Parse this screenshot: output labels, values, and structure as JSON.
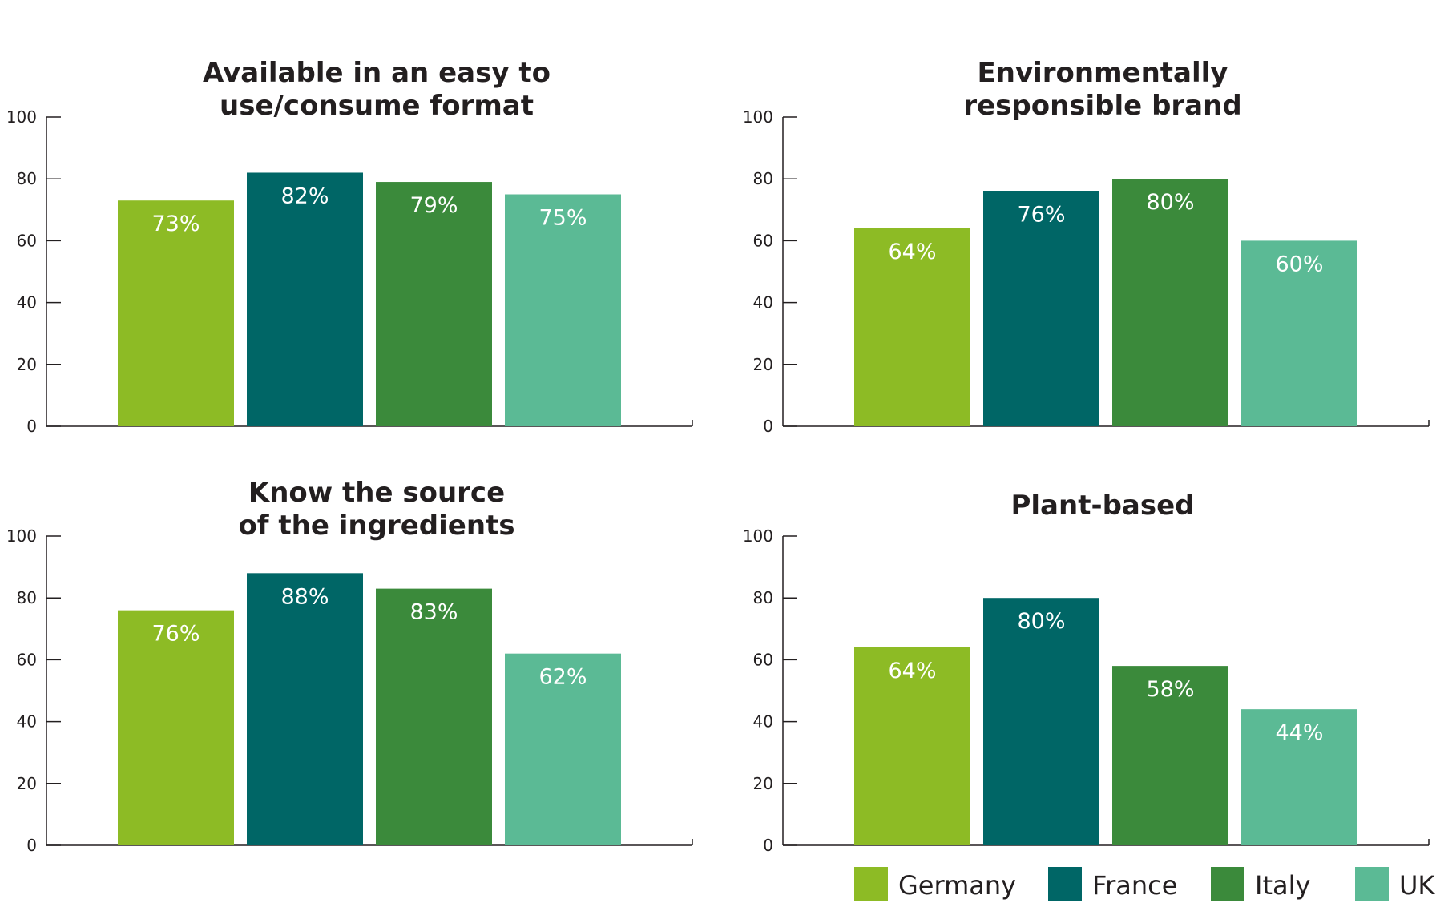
{
  "colors": {
    "Germany": "#8dbb25",
    "France": "#006666",
    "Italy": "#3b8a3b",
    "UK": "#5bba95",
    "axis": "#231f20"
  },
  "legend": [
    {
      "label": "Germany",
      "color_key": "Germany"
    },
    {
      "label": "France",
      "color_key": "France"
    },
    {
      "label": "Italy",
      "color_key": "Italy"
    },
    {
      "label": "UK",
      "color_key": "UK"
    }
  ],
  "chart_data": [
    {
      "type": "bar",
      "title_lines": [
        "Available in an easy to",
        "use/consume format"
      ],
      "categories": [
        "Germany",
        "France",
        "Italy",
        "UK"
      ],
      "values": [
        73,
        82,
        79,
        75
      ],
      "data_labels": [
        "73%",
        "82%",
        "79%",
        "75%"
      ],
      "ylim": [
        0,
        100
      ],
      "yticks": [
        "0",
        "20",
        "40",
        "60",
        "80",
        "100"
      ],
      "legend": "bottom-right",
      "grid": false
    },
    {
      "type": "bar",
      "title_lines": [
        "Environmentally",
        "responsible brand"
      ],
      "categories": [
        "Germany",
        "France",
        "Italy",
        "UK"
      ],
      "values": [
        64,
        76,
        80,
        60
      ],
      "data_labels": [
        "64%",
        "76%",
        "80%",
        "60%"
      ],
      "ylim": [
        0,
        100
      ],
      "yticks": [
        "0",
        "20",
        "40",
        "60",
        "80",
        "100"
      ],
      "legend": "bottom-right",
      "grid": false
    },
    {
      "type": "bar",
      "title_lines": [
        "Know the source",
        "of the ingredients"
      ],
      "categories": [
        "Germany",
        "France",
        "Italy",
        "UK"
      ],
      "values": [
        76,
        88,
        83,
        62
      ],
      "data_labels": [
        "76%",
        "88%",
        "83%",
        "62%"
      ],
      "ylim": [
        0,
        100
      ],
      "yticks": [
        "0",
        "20",
        "40",
        "60",
        "80",
        "100"
      ],
      "legend": "bottom-right",
      "grid": false
    },
    {
      "type": "bar",
      "title_lines": [
        "Plant-based"
      ],
      "categories": [
        "Germany",
        "France",
        "Italy",
        "UK"
      ],
      "values": [
        64,
        80,
        58,
        44
      ],
      "data_labels": [
        "64%",
        "80%",
        "58%",
        "44%"
      ],
      "ylim": [
        0,
        100
      ],
      "yticks": [
        "0",
        "20",
        "40",
        "60",
        "80",
        "100"
      ],
      "legend": "bottom-right",
      "grid": false
    }
  ]
}
